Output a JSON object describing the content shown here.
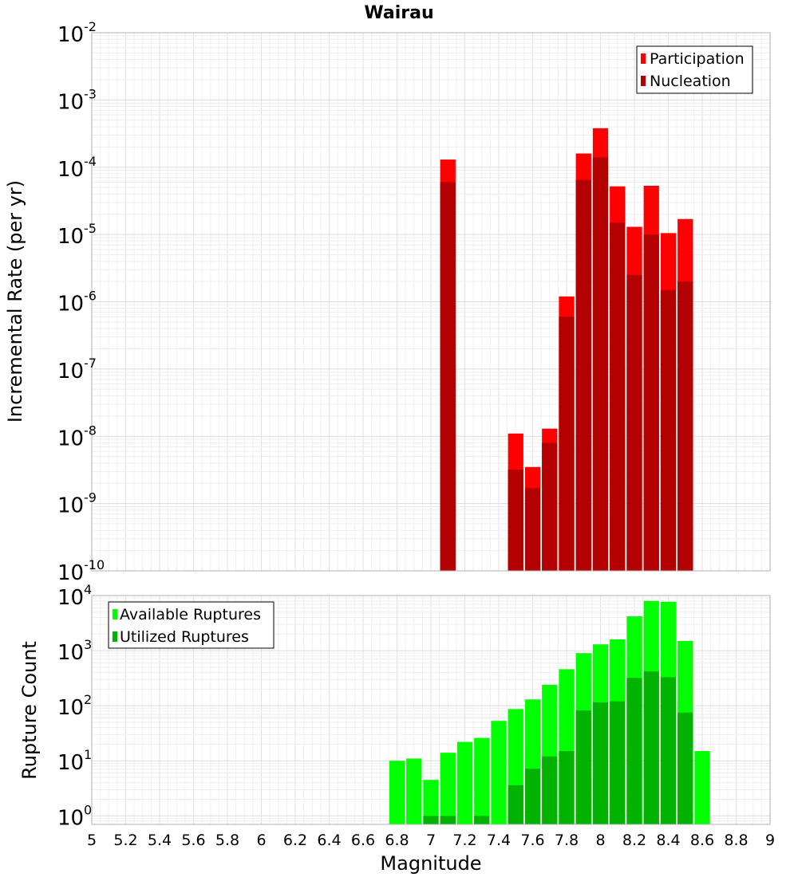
{
  "chart_data": [
    {
      "type": "bar",
      "title": "Wairau",
      "ylabel": "Incremental Rate (per yr)",
      "yscale": "log",
      "ylim": [
        1e-10,
        0.01
      ],
      "xlim": [
        5,
        9
      ],
      "grid": true,
      "legend_position": "top-right",
      "series": [
        {
          "name": "Participation",
          "color": "#ff0000",
          "points": [
            {
              "x": 7.1,
              "y": 0.00013
            },
            {
              "x": 7.5,
              "y": 1.1e-08
            },
            {
              "x": 7.6,
              "y": 3.5e-09
            },
            {
              "x": 7.7,
              "y": 1.3e-08
            },
            {
              "x": 7.8,
              "y": 1.2e-06
            },
            {
              "x": 7.9,
              "y": 0.00016
            },
            {
              "x": 8.0,
              "y": 0.00038
            },
            {
              "x": 8.1,
              "y": 5.2e-05
            },
            {
              "x": 8.2,
              "y": 1.3e-05
            },
            {
              "x": 8.3,
              "y": 5.3e-05
            },
            {
              "x": 8.4,
              "y": 1.05e-05
            },
            {
              "x": 8.5,
              "y": 1.7e-05
            }
          ]
        },
        {
          "name": "Nucleation",
          "color": "#b30000",
          "points": [
            {
              "x": 7.1,
              "y": 6e-05
            },
            {
              "x": 7.5,
              "y": 3.2e-09
            },
            {
              "x": 7.6,
              "y": 1.7e-09
            },
            {
              "x": 7.7,
              "y": 8e-09
            },
            {
              "x": 7.8,
              "y": 6e-07
            },
            {
              "x": 7.9,
              "y": 6.5e-05
            },
            {
              "x": 8.0,
              "y": 0.00014
            },
            {
              "x": 8.1,
              "y": 1.5e-05
            },
            {
              "x": 8.2,
              "y": 2.5e-06
            },
            {
              "x": 8.3,
              "y": 1e-05
            },
            {
              "x": 8.4,
              "y": 1.5e-06
            },
            {
              "x": 8.5,
              "y": 2e-06
            }
          ]
        }
      ]
    },
    {
      "type": "bar",
      "xlabel": "Magnitude",
      "ylabel": "Rupture Count",
      "yscale": "log",
      "ylim": [
        0.7,
        10000
      ],
      "xlim": [
        5,
        9
      ],
      "grid": true,
      "legend_position": "top-left",
      "series": [
        {
          "name": "Available Ruptures",
          "color": "#00ff00",
          "points": [
            {
              "x": 6.8,
              "y": 10
            },
            {
              "x": 6.9,
              "y": 11
            },
            {
              "x": 7.0,
              "y": 4.5
            },
            {
              "x": 7.1,
              "y": 14
            },
            {
              "x": 7.2,
              "y": 22
            },
            {
              "x": 7.3,
              "y": 26
            },
            {
              "x": 7.4,
              "y": 53
            },
            {
              "x": 7.5,
              "y": 87
            },
            {
              "x": 7.6,
              "y": 130
            },
            {
              "x": 7.7,
              "y": 240
            },
            {
              "x": 7.8,
              "y": 460
            },
            {
              "x": 7.9,
              "y": 900
            },
            {
              "x": 8.0,
              "y": 1300
            },
            {
              "x": 8.1,
              "y": 1600
            },
            {
              "x": 8.2,
              "y": 4200
            },
            {
              "x": 8.3,
              "y": 8000
            },
            {
              "x": 8.4,
              "y": 7700
            },
            {
              "x": 8.5,
              "y": 1500
            },
            {
              "x": 8.6,
              "y": 15
            }
          ]
        },
        {
          "name": "Utilized Ruptures",
          "color": "#00b300",
          "points": [
            {
              "x": 7.0,
              "y": 1
            },
            {
              "x": 7.1,
              "y": 1
            },
            {
              "x": 7.3,
              "y": 1
            },
            {
              "x": 7.5,
              "y": 3.6
            },
            {
              "x": 7.6,
              "y": 7.2
            },
            {
              "x": 7.7,
              "y": 12
            },
            {
              "x": 7.8,
              "y": 15
            },
            {
              "x": 7.9,
              "y": 82
            },
            {
              "x": 8.0,
              "y": 115
            },
            {
              "x": 8.1,
              "y": 120
            },
            {
              "x": 8.2,
              "y": 320
            },
            {
              "x": 8.3,
              "y": 420
            },
            {
              "x": 8.4,
              "y": 330
            },
            {
              "x": 8.5,
              "y": 75
            }
          ]
        }
      ]
    }
  ],
  "xaxis_ticks": [
    "5",
    "5.2",
    "5.4",
    "5.6",
    "5.8",
    "6",
    "6.2",
    "6.4",
    "6.6",
    "6.8",
    "7",
    "7.2",
    "7.4",
    "7.6",
    "7.8",
    "8",
    "8.2",
    "8.4",
    "8.6",
    "8.8",
    "9"
  ],
  "top_ytick_exponents": [
    "-2",
    "-3",
    "-4",
    "-5",
    "-6",
    "-7",
    "-8",
    "-9",
    "-10"
  ],
  "bottom_ytick_exponents": [
    "4",
    "3",
    "2",
    "1",
    "0"
  ],
  "ytick_base": "10"
}
